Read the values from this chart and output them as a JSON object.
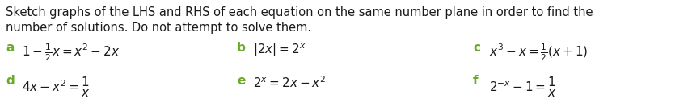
{
  "background_color": "#ffffff",
  "text_color": "#1a1a1a",
  "label_color": "#6aaa2a",
  "intro_line1": "Sketch graphs of the LHS and RHS of each equation on the same number plane in order to find the",
  "intro_line2": "number of solutions. Do not attempt to solve them.",
  "items": [
    {
      "label": "a",
      "eq": "$1 - \\frac{1}{2}x = x^2 - 2x$"
    },
    {
      "label": "b",
      "eq": "$|2x| = 2^x$"
    },
    {
      "label": "c",
      "eq": "$x^3 - x = \\frac{1}{2}(x + 1)$"
    },
    {
      "label": "d",
      "eq": "$4x - x^2 = \\dfrac{1}{x}$"
    },
    {
      "label": "e",
      "eq": "$2^x = 2x - x^2$"
    },
    {
      "label": "f",
      "eq": "$2^{-x} - 1 = \\dfrac{1}{x}$"
    }
  ],
  "intro_fontsize": 10.5,
  "label_fontsize": 11.0,
  "eq_fontsize": 11.0,
  "figwidth_in": 8.56,
  "figheight_in": 1.38,
  "dpi": 100
}
